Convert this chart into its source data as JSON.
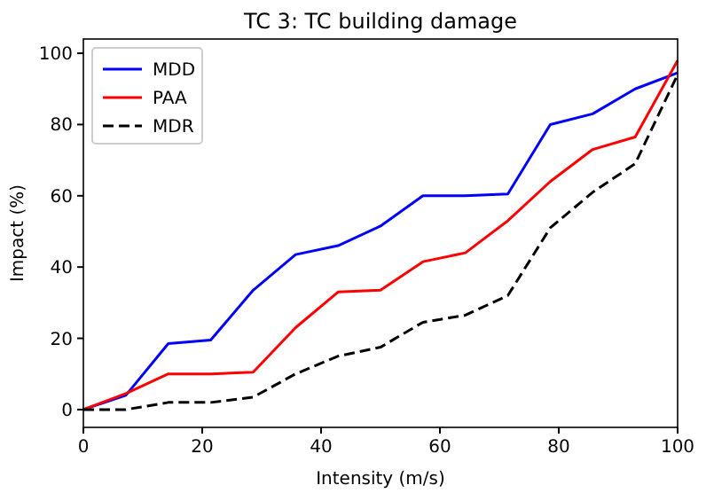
{
  "chart_data": {
    "type": "line",
    "title": "TC 3: TC building damage",
    "xlabel": "Intensity (m/s)",
    "ylabel": "Impact (%)",
    "x": [
      0,
      7.14,
      14.29,
      21.43,
      28.57,
      35.71,
      42.86,
      50,
      57.14,
      64.29,
      71.43,
      78.57,
      85.71,
      92.86,
      100
    ],
    "xlim": [
      0,
      100
    ],
    "xticks": [
      0,
      20,
      40,
      60,
      80,
      100
    ],
    "ylim": [
      -5,
      104
    ],
    "yticks": [
      0,
      20,
      40,
      60,
      80,
      100
    ],
    "legend": "top left",
    "grid": false,
    "series": [
      {
        "name": "MDD",
        "color": "#0000ff",
        "line_style": "solid",
        "values": [
          0,
          4,
          18.5,
          19.5,
          33.5,
          43.5,
          46,
          51.5,
          60,
          60,
          60.5,
          80,
          83,
          90,
          94.5
        ]
      },
      {
        "name": "PAA",
        "color": "#ff0000",
        "line_style": "solid",
        "values": [
          0,
          4.5,
          10,
          10,
          10.5,
          23,
          33,
          33.5,
          41.5,
          44,
          53,
          64,
          73,
          76.5,
          98
        ]
      },
      {
        "name": "MDR",
        "color": "#000000",
        "line_style": "dashed",
        "values": [
          0,
          0,
          2,
          2,
          3.5,
          10,
          15,
          17.5,
          24.5,
          26.5,
          32,
          51,
          61,
          69,
          94
        ]
      }
    ]
  }
}
